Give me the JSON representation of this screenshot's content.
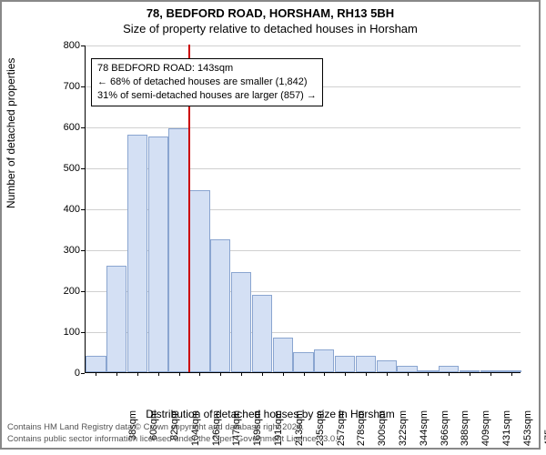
{
  "header": {
    "address": "78, BEDFORD ROAD, HORSHAM, RH13 5BH",
    "subtitle": "Size of property relative to detached houses in Horsham"
  },
  "chart": {
    "type": "histogram",
    "ylabel": "Number of detached properties",
    "xlabel": "Distribution of detached houses by size in Horsham",
    "ylim": [
      0,
      800
    ],
    "ytick_step": 100,
    "bar_color": "#d4e0f4",
    "bar_border_color": "#8aa5d0",
    "grid_color": "#d0d0d0",
    "background_color": "#ffffff",
    "marker_color": "#cc0000",
    "marker_category_index": 5,
    "categories": [
      "38sqm",
      "60sqm",
      "82sqm",
      "104sqm",
      "126sqm",
      "147sqm",
      "169sqm",
      "191sqm",
      "213sqm",
      "235sqm",
      "257sqm",
      "278sqm",
      "300sqm",
      "322sqm",
      "344sqm",
      "366sqm",
      "388sqm",
      "409sqm",
      "431sqm",
      "453sqm",
      "475sqm"
    ],
    "values": [
      40,
      260,
      580,
      575,
      595,
      445,
      325,
      245,
      190,
      85,
      50,
      55,
      40,
      40,
      30,
      15,
      5,
      15,
      3,
      0,
      3
    ],
    "label_fontsize": 12,
    "tick_fontsize": 11
  },
  "annotation": {
    "line1": "78 BEDFORD ROAD: 143sqm",
    "line2": "← 68% of detached houses are smaller (1,842)",
    "line3": "31% of semi-detached houses are larger (857) →"
  },
  "attribution": {
    "line1": "Contains HM Land Registry data © Crown copyright and database right 2024.",
    "line2": "Contains public sector information licensed under the Open Government Licence v3.0."
  }
}
